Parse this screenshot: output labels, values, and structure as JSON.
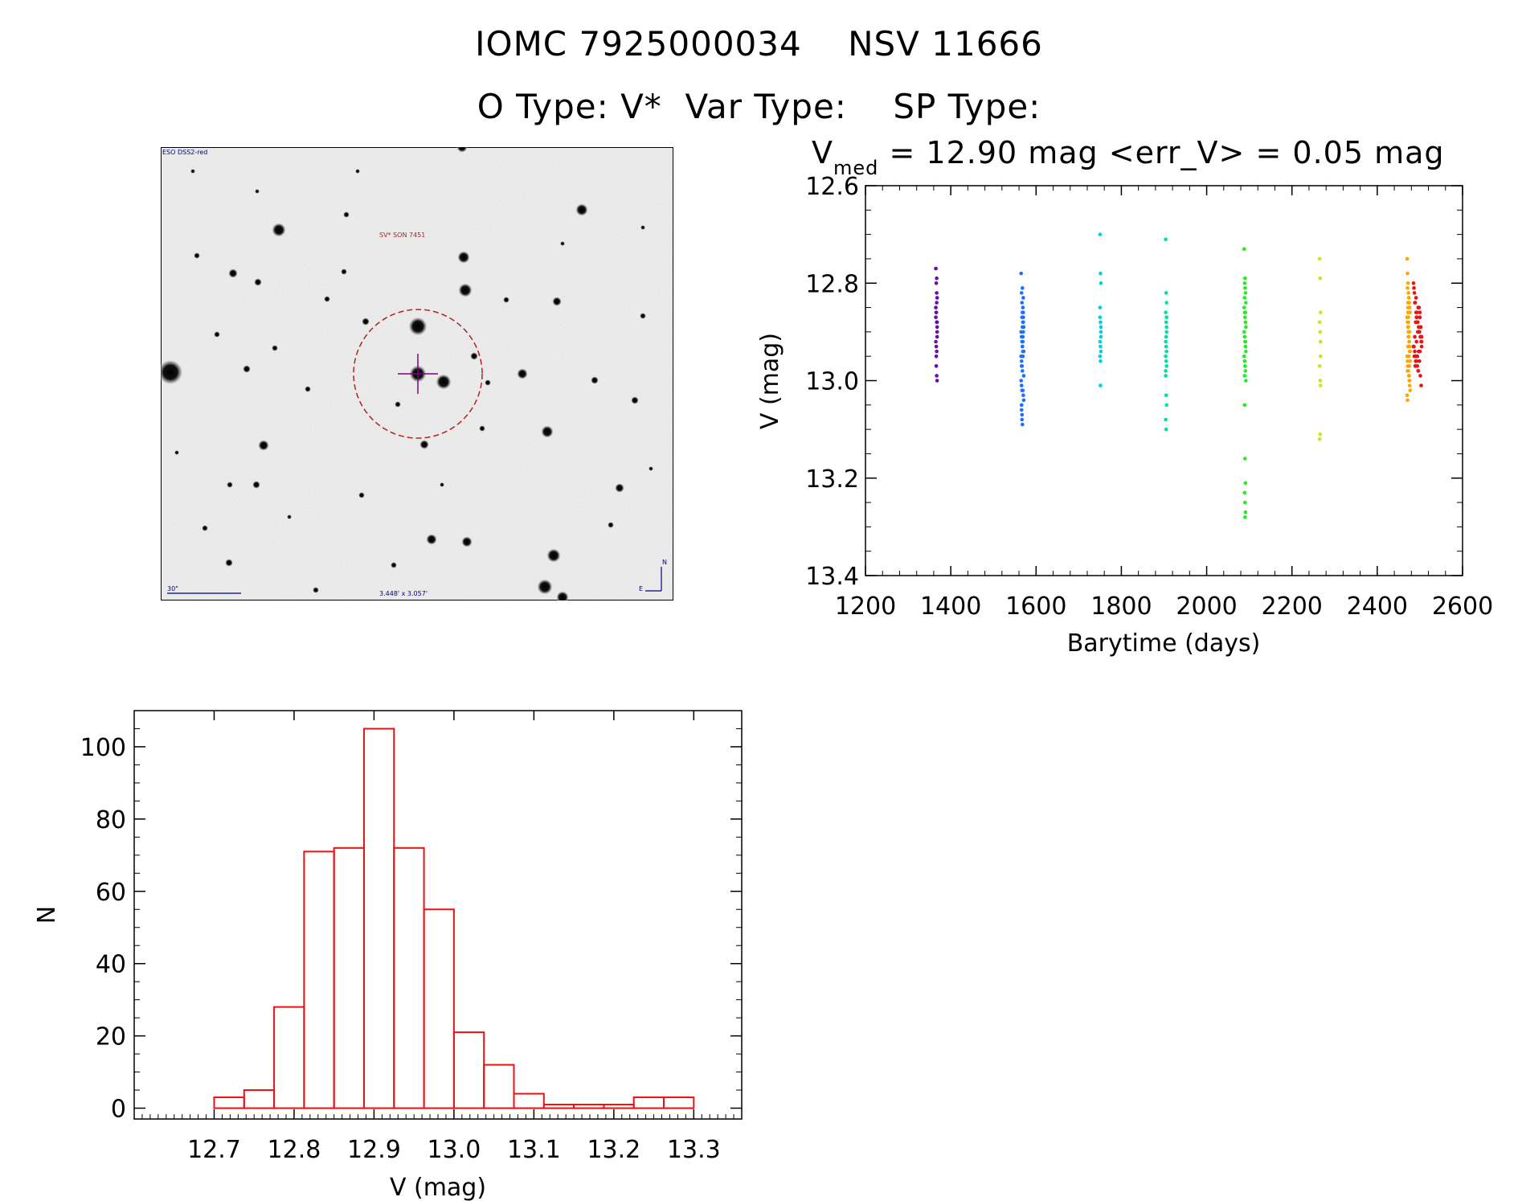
{
  "title": {
    "line1": "IOMC 7925000034    NSV 11666",
    "line2": "O Type: V*  Var Type:    SP Type:",
    "vmed_prefix": "V",
    "vmed_sub": "med",
    "vmed_rest": " = 12.90 mag <err_V> = 0.05 mag"
  },
  "finder": {
    "survey_label": "ESO DSS2-red",
    "target_label": "SV* SON 7451",
    "scale_label": "30\"",
    "size_label": "3.448' x 3.057'",
    "north_label": "N",
    "east_label": "E",
    "target_circle_color": "#b22222",
    "crosshair_color": "#800080"
  },
  "chart_data": [
    {
      "type": "scatter",
      "xlabel": "Barytime (days)",
      "ylabel": "V (mag)",
      "xlim": [
        1200,
        2600
      ],
      "ylim": [
        13.4,
        12.6
      ],
      "xticks": [
        1200,
        1400,
        1600,
        1800,
        2000,
        2200,
        2400,
        2600
      ],
      "yticks": [
        "12.6",
        "12.8",
        "13.0",
        "13.2",
        "13.4"
      ],
      "series": [
        {
          "color": "#6a0dad",
          "x": [
            1365,
            1366,
            1367,
            1368,
            1365,
            1366,
            1367,
            1368,
            1365,
            1366,
            1367,
            1368,
            1366,
            1367,
            1368,
            1366,
            1367,
            1365,
            1368,
            1366,
            1367,
            1368
          ],
          "y": [
            12.77,
            12.8,
            12.79,
            12.83,
            12.85,
            12.86,
            12.88,
            12.9,
            12.92,
            12.93,
            12.94,
            12.89,
            12.97,
            12.99,
            13.0,
            12.86,
            12.82,
            12.87,
            12.91,
            12.95,
            12.84,
            12.88
          ]
        },
        {
          "color": "#1f6fff",
          "x": [
            1565,
            1566,
            1567,
            1568,
            1569,
            1570,
            1571,
            1565,
            1566,
            1567,
            1568,
            1569,
            1570,
            1571,
            1565,
            1566,
            1567,
            1568,
            1569,
            1570,
            1571,
            1565,
            1566,
            1567,
            1568,
            1569,
            1570,
            1571,
            1566,
            1567,
            1568,
            1569,
            1570,
            1566,
            1567,
            1568,
            1569,
            1567,
            1568,
            1566,
            1569,
            1570
          ],
          "y": [
            12.78,
            12.82,
            12.84,
            12.86,
            12.85,
            12.87,
            12.89,
            12.9,
            12.91,
            12.92,
            12.93,
            12.88,
            12.86,
            12.94,
            12.95,
            12.96,
            12.97,
            12.98,
            12.92,
            12.9,
            12.99,
            13.0,
            13.01,
            13.02,
            12.93,
            12.91,
            13.03,
            13.04,
            13.05,
            12.87,
            12.89,
            12.95,
            12.83,
            13.06,
            13.07,
            12.81,
            12.94,
            13.08,
            13.09,
            12.97,
            13.02,
            12.88
          ]
        },
        {
          "color": "#00d0e0",
          "x": [
            1750,
            1751,
            1752,
            1750,
            1751,
            1752,
            1750,
            1751,
            1752,
            1750,
            1751,
            1752,
            1751,
            1750,
            1752
          ],
          "y": [
            12.7,
            12.78,
            12.8,
            12.85,
            12.88,
            12.9,
            12.92,
            12.93,
            12.94,
            12.95,
            12.96,
            12.89,
            13.01,
            12.87,
            12.91
          ]
        },
        {
          "color": "#00e0a0",
          "x": [
            1904,
            1905,
            1906,
            1904,
            1905,
            1906,
            1904,
            1905,
            1906,
            1904,
            1905,
            1906,
            1904,
            1905,
            1906,
            1904,
            1905,
            1906,
            1905,
            1904,
            1906
          ],
          "y": [
            12.71,
            12.82,
            12.84,
            12.86,
            12.88,
            12.9,
            12.92,
            12.93,
            12.94,
            12.95,
            12.96,
            12.97,
            12.98,
            13.03,
            13.05,
            13.08,
            13.1,
            12.89,
            12.91,
            12.99,
            12.87
          ]
        },
        {
          "color": "#22ee22",
          "x": [
            2088,
            2089,
            2090,
            2091,
            2092,
            2088,
            2089,
            2090,
            2091,
            2092,
            2088,
            2089,
            2090,
            2091,
            2092,
            2088,
            2089,
            2090,
            2091,
            2092,
            2089,
            2090,
            2091,
            2089,
            2090,
            2091,
            2090,
            2089,
            2091,
            2090,
            2089,
            2091
          ],
          "y": [
            12.73,
            12.8,
            12.81,
            12.82,
            12.84,
            12.85,
            12.86,
            12.87,
            12.88,
            12.89,
            12.9,
            12.91,
            12.92,
            12.93,
            12.94,
            12.95,
            12.96,
            12.97,
            12.98,
            13.0,
            13.05,
            13.16,
            13.21,
            13.23,
            13.25,
            13.27,
            13.28,
            12.83,
            12.92,
            12.79,
            12.99,
            12.86
          ]
        },
        {
          "color": "#c8e61e",
          "x": [
            2265,
            2266,
            2267,
            2265,
            2266,
            2267,
            2265,
            2266,
            2267,
            2266,
            2265,
            2267
          ],
          "y": [
            12.75,
            12.79,
            12.86,
            12.88,
            12.9,
            12.95,
            12.97,
            13.0,
            13.01,
            13.11,
            13.12,
            12.92
          ]
        },
        {
          "color": "#ffa500",
          "x": [
            2470,
            2471,
            2472,
            2473,
            2474,
            2475,
            2476,
            2477,
            2470,
            2471,
            2472,
            2473,
            2474,
            2475,
            2476,
            2477,
            2470,
            2471,
            2472,
            2473,
            2474,
            2475,
            2476,
            2477,
            2470,
            2471,
            2472,
            2473,
            2474,
            2475,
            2476,
            2477,
            2471,
            2472,
            2473,
            2474,
            2475,
            2476,
            2472,
            2473,
            2474,
            2475,
            2473,
            2474,
            2471,
            2476,
            2472,
            2475
          ],
          "y": [
            12.75,
            12.78,
            12.8,
            12.82,
            12.83,
            12.84,
            12.85,
            12.86,
            12.87,
            12.88,
            12.89,
            12.9,
            12.91,
            12.92,
            12.93,
            12.94,
            12.95,
            12.96,
            12.97,
            12.98,
            12.99,
            13.0,
            13.01,
            13.02,
            13.03,
            13.04,
            12.86,
            12.88,
            12.9,
            12.92,
            12.94,
            12.96,
            12.81,
            12.85,
            12.89,
            12.93,
            12.97,
            13.0,
            12.84,
            12.91,
            12.95,
            12.99,
            12.87,
            12.83,
            12.98,
            12.9,
            12.93,
            12.86
          ]
        },
        {
          "color": "#ee1111",
          "x": [
            2485,
            2487,
            2489,
            2491,
            2493,
            2495,
            2497,
            2499,
            2501,
            2503,
            2486,
            2488,
            2490,
            2492,
            2494,
            2496,
            2498,
            2500,
            2502,
            2504,
            2485,
            2487,
            2489,
            2491,
            2493,
            2495,
            2497,
            2499,
            2501,
            2503,
            2486,
            2488,
            2490,
            2492,
            2494,
            2496,
            2498,
            2500,
            2502,
            2504,
            2488,
            2492,
            2496,
            2500,
            2504,
            2490,
            2494,
            2498
          ],
          "y": [
            12.8,
            12.82,
            12.84,
            12.86,
            12.87,
            12.88,
            12.89,
            12.9,
            12.91,
            12.92,
            12.93,
            12.94,
            12.95,
            12.96,
            12.97,
            12.98,
            12.85,
            12.87,
            12.89,
            12.91,
            12.93,
            12.95,
            12.97,
            12.83,
            12.86,
            12.9,
            12.94,
            12.96,
            12.99,
            13.01,
            12.81,
            12.84,
            12.88,
            12.92,
            12.95,
            12.98,
            12.9,
            12.86,
            12.89,
            12.93,
            12.91,
            12.87,
            12.85,
            12.94,
            12.92,
            12.96,
            12.88,
            12.9
          ]
        }
      ]
    },
    {
      "type": "bar",
      "xlabel": "V (mag)",
      "ylabel": "N",
      "xlim": [
        12.6,
        13.36
      ],
      "ylim": [
        -3,
        110
      ],
      "xticks": [
        "12.7",
        "12.8",
        "12.9",
        "13.0",
        "13.1",
        "13.2",
        "13.3"
      ],
      "yticks": [
        "0",
        "20",
        "40",
        "60",
        "80",
        "100"
      ],
      "bin_edges": [
        12.7,
        12.7375,
        12.775,
        12.8125,
        12.85,
        12.8875,
        12.925,
        12.9625,
        13.0,
        13.0375,
        13.075,
        13.1125,
        13.15,
        13.1875,
        13.225,
        13.2625,
        13.3
      ],
      "values": [
        3,
        5,
        28,
        71,
        72,
        105,
        72,
        55,
        21,
        12,
        4,
        1,
        1,
        1,
        3,
        3
      ],
      "bar_color": "#ee1111"
    }
  ]
}
